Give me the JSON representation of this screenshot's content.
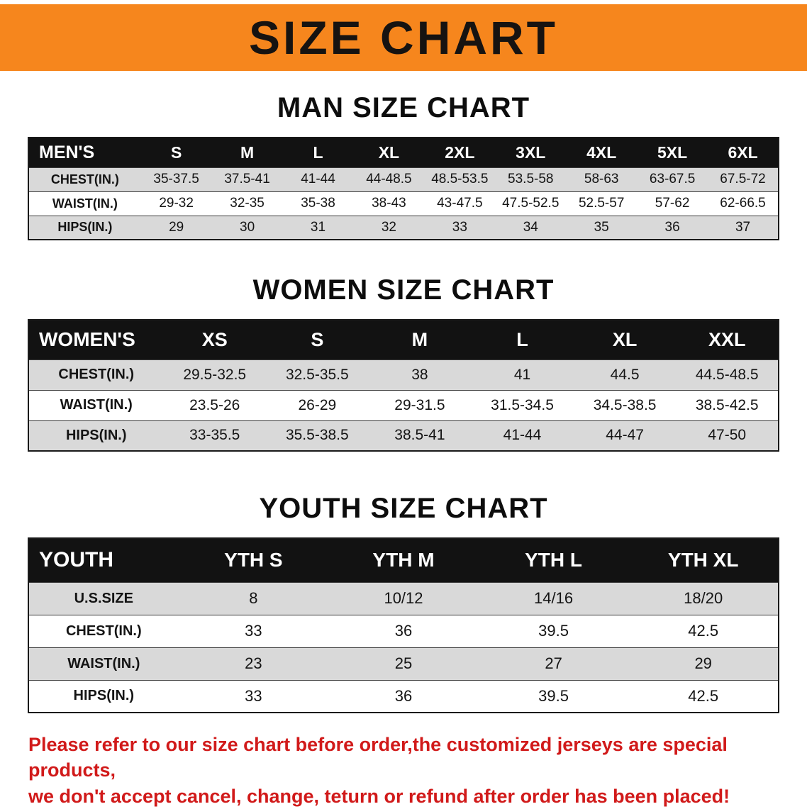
{
  "banner": {
    "title": "SIZE CHART",
    "bg_color": "#f6861d",
    "text_color": "#161311"
  },
  "colors": {
    "table_header_bg": "#121212",
    "row_stripe": "#d9d9d9",
    "footer_text": "#d11a1a"
  },
  "tables": [
    {
      "id": "men",
      "title": "MAN SIZE CHART",
      "header": [
        "MEN'S",
        "S",
        "M",
        "L",
        "XL",
        "2XL",
        "3XL",
        "4XL",
        "5XL",
        "6XL"
      ],
      "rows": [
        [
          "CHEST(IN.)",
          "35-37.5",
          "37.5-41",
          "41-44",
          "44-48.5",
          "48.5-53.5",
          "53.5-58",
          "58-63",
          "63-67.5",
          "67.5-72"
        ],
        [
          "WAIST(IN.)",
          "29-32",
          "32-35",
          "35-38",
          "38-43",
          "43-47.5",
          "47.5-52.5",
          "52.5-57",
          "57-62",
          "62-66.5"
        ],
        [
          "HIPS(IN.)",
          "29",
          "30",
          "31",
          "32",
          "33",
          "34",
          "35",
          "36",
          "37"
        ]
      ]
    },
    {
      "id": "women",
      "title": "WOMEN SIZE CHART",
      "header": [
        "WOMEN'S",
        "XS",
        "S",
        "M",
        "L",
        "XL",
        "XXL"
      ],
      "rows": [
        [
          "CHEST(IN.)",
          "29.5-32.5",
          "32.5-35.5",
          "38",
          "41",
          "44.5",
          "44.5-48.5"
        ],
        [
          "WAIST(IN.)",
          "23.5-26",
          "26-29",
          "29-31.5",
          "31.5-34.5",
          "34.5-38.5",
          "38.5-42.5"
        ],
        [
          "HIPS(IN.)",
          "33-35.5",
          "35.5-38.5",
          "38.5-41",
          "41-44",
          "44-47",
          "47-50"
        ]
      ]
    },
    {
      "id": "youth",
      "title": "YOUTH SIZE CHART",
      "header": [
        "YOUTH",
        "YTH S",
        "YTH M",
        "YTH L",
        "YTH XL"
      ],
      "rows": [
        [
          "U.S.SIZE",
          "8",
          "10/12",
          "14/16",
          "18/20"
        ],
        [
          "CHEST(IN.)",
          "33",
          "36",
          "39.5",
          "42.5"
        ],
        [
          "WAIST(IN.)",
          "23",
          "25",
          "27",
          "29"
        ],
        [
          "HIPS(IN.)",
          "33",
          "36",
          "39.5",
          "42.5"
        ]
      ]
    }
  ],
  "footer": {
    "line1": "Please refer to our size chart before order,the customized jerseys are special products,",
    "line2": "we don't accept cancel, change, teturn or refund after order has been placed!"
  }
}
